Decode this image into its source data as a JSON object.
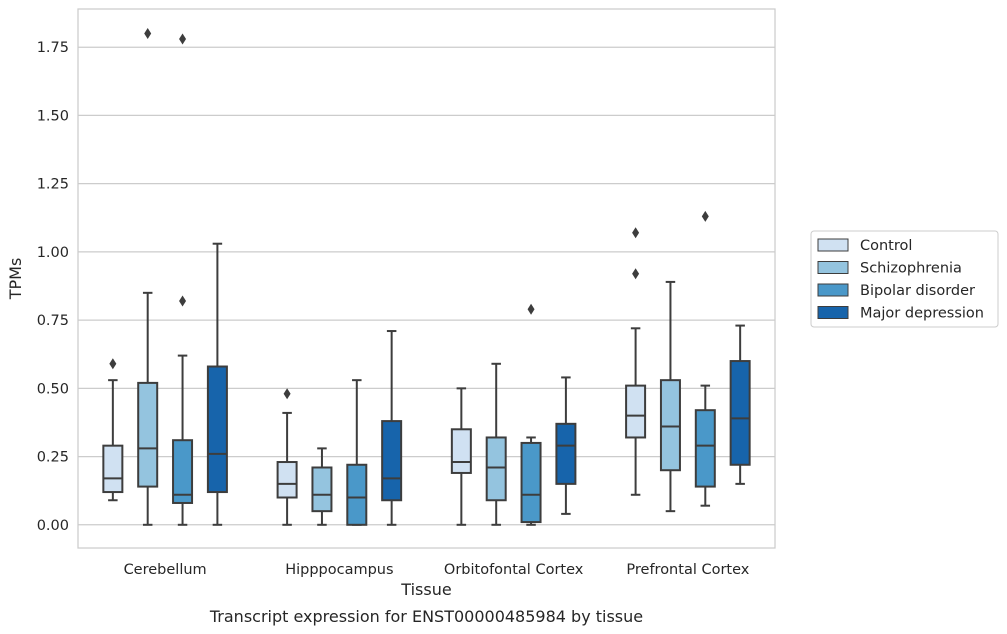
{
  "caption": "Transcript expression for ENST00000485984 by tissue",
  "chart_data": {
    "type": "box",
    "xlabel": "Tissue",
    "ylabel": "TPMs",
    "ylim": [
      -0.085,
      1.89
    ],
    "yticks": [
      "0.00",
      "0.25",
      "0.50",
      "0.75",
      "1.00",
      "1.25",
      "1.50",
      "1.75"
    ],
    "ytick_values": [
      0,
      0.25,
      0.5,
      0.75,
      1.0,
      1.25,
      1.5,
      1.75
    ],
    "grid": true,
    "legend_position": "right",
    "categories": [
      "Cerebellum",
      "Hipppocampus",
      "Orbitofontal Cortex",
      "Prefrontal Cortex"
    ],
    "series": [
      {
        "name": "Control",
        "color": "#d0e1f2",
        "boxes": [
          {
            "whisker_low": 0.09,
            "q1": 0.12,
            "median": 0.17,
            "q3": 0.29,
            "whisker_high": 0.53,
            "outliers": [
              0.59
            ]
          },
          {
            "whisker_low": 0.0,
            "q1": 0.1,
            "median": 0.15,
            "q3": 0.23,
            "whisker_high": 0.41,
            "outliers": [
              0.48
            ]
          },
          {
            "whisker_low": 0.0,
            "q1": 0.19,
            "median": 0.23,
            "q3": 0.35,
            "whisker_high": 0.5,
            "outliers": []
          },
          {
            "whisker_low": 0.11,
            "q1": 0.32,
            "median": 0.4,
            "q3": 0.51,
            "whisker_high": 0.72,
            "outliers": [
              0.92,
              1.07
            ]
          }
        ]
      },
      {
        "name": "Schizophrenia",
        "color": "#94c4df",
        "boxes": [
          {
            "whisker_low": 0.0,
            "q1": 0.14,
            "median": 0.28,
            "q3": 0.52,
            "whisker_high": 0.85,
            "outliers": [
              1.8
            ]
          },
          {
            "whisker_low": 0.0,
            "q1": 0.05,
            "median": 0.11,
            "q3": 0.21,
            "whisker_high": 0.28,
            "outliers": []
          },
          {
            "whisker_low": 0.0,
            "q1": 0.09,
            "median": 0.21,
            "q3": 0.32,
            "whisker_high": 0.59,
            "outliers": []
          },
          {
            "whisker_low": 0.05,
            "q1": 0.2,
            "median": 0.36,
            "q3": 0.53,
            "whisker_high": 0.89,
            "outliers": []
          }
        ]
      },
      {
        "name": "Bipolar disorder",
        "color": "#4a98c9",
        "boxes": [
          {
            "whisker_low": 0.0,
            "q1": 0.08,
            "median": 0.11,
            "q3": 0.31,
            "whisker_high": 0.62,
            "outliers": [
              0.82,
              1.78
            ]
          },
          {
            "whisker_low": 0.0,
            "q1": 0.0,
            "median": 0.1,
            "q3": 0.22,
            "whisker_high": 0.53,
            "outliers": []
          },
          {
            "whisker_low": 0.0,
            "q1": 0.01,
            "median": 0.11,
            "q3": 0.3,
            "whisker_high": 0.32,
            "outliers": [
              0.79
            ]
          },
          {
            "whisker_low": 0.07,
            "q1": 0.14,
            "median": 0.29,
            "q3": 0.42,
            "whisker_high": 0.51,
            "outliers": [
              1.13
            ]
          }
        ]
      },
      {
        "name": "Major depression",
        "color": "#1764ab",
        "boxes": [
          {
            "whisker_low": 0.0,
            "q1": 0.12,
            "median": 0.26,
            "q3": 0.58,
            "whisker_high": 1.03,
            "outliers": []
          },
          {
            "whisker_low": 0.0,
            "q1": 0.09,
            "median": 0.17,
            "q3": 0.38,
            "whisker_high": 0.71,
            "outliers": []
          },
          {
            "whisker_low": 0.04,
            "q1": 0.15,
            "median": 0.29,
            "q3": 0.37,
            "whisker_high": 0.54,
            "outliers": []
          },
          {
            "whisker_low": 0.15,
            "q1": 0.22,
            "median": 0.39,
            "q3": 0.6,
            "whisker_high": 0.73,
            "outliers": []
          }
        ]
      }
    ]
  }
}
